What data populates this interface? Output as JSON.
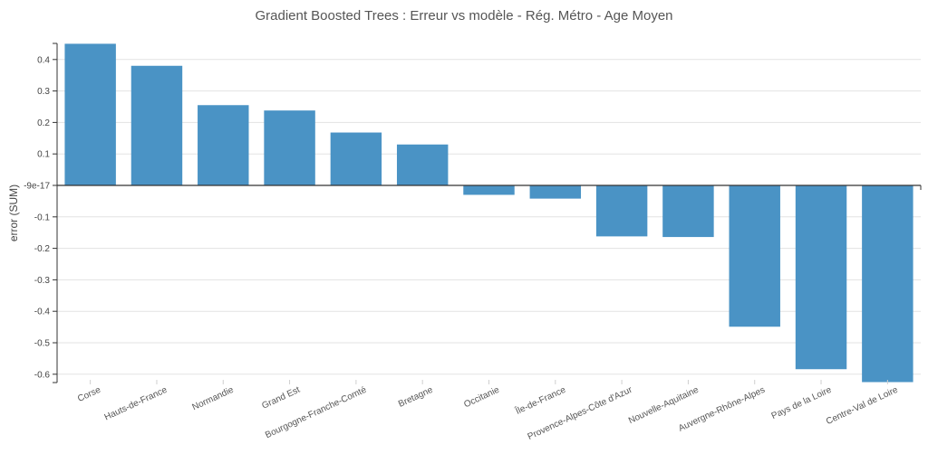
{
  "chart_data": {
    "type": "bar",
    "title": "Gradient Boosted Trees : Erreur vs modèle - Rég. Métro - Age Moyen",
    "xlabel": "",
    "ylabel": "error (SUM)",
    "ylim": [
      -0.63,
      0.45
    ],
    "yticks": [
      0.4,
      0.3,
      0.2,
      0.1,
      0,
      -0.1,
      -0.2,
      -0.3,
      -0.4,
      -0.5,
      -0.6
    ],
    "ytick_labels": [
      "0.4",
      "0.3",
      "0.2",
      "0.1",
      "-9e-17",
      "-0.1",
      "-0.2",
      "-0.3",
      "-0.4",
      "-0.5",
      "-0.6"
    ],
    "categories": [
      "Corse",
      "Hauts-de-France",
      "Normandie",
      "Grand Est",
      "Bourgogne-Franche-Comté",
      "Bretagne",
      "Occitanie",
      "Île-de-France",
      "Provence-Alpes-Côte d'Azur",
      "Nouvelle-Aquitaine",
      "Auvergne-Rhône-Alpes",
      "Pays de la Loire",
      "Centre-Val de Loire"
    ],
    "values": [
      0.45,
      0.38,
      0.255,
      0.238,
      0.168,
      0.13,
      -0.03,
      -0.042,
      -0.162,
      -0.164,
      -0.449,
      -0.584,
      -0.625
    ],
    "grid": true,
    "bar_color": "#4a93c5"
  }
}
